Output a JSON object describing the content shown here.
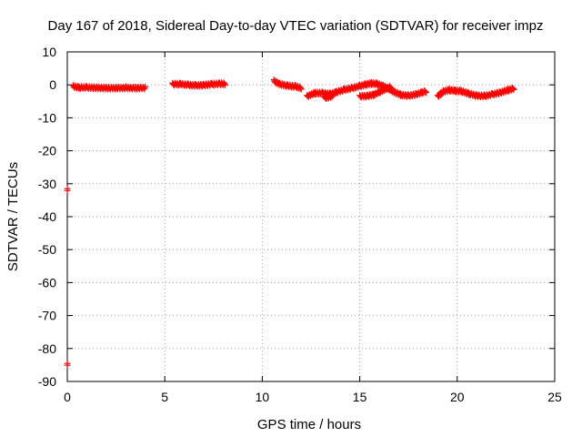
{
  "chart_data": {
    "type": "scatter",
    "title": "Day 167 of 2018, Sidereal Day-to-day VTEC variation (SDTVAR) for receiver impz",
    "xlabel": "GPS time / hours",
    "ylabel": "SDTVAR / TECUs",
    "xlim": [
      0,
      25
    ],
    "ylim": [
      -90,
      10
    ],
    "xticks": [
      0,
      5,
      10,
      15,
      20,
      25
    ],
    "yticks": [
      10,
      0,
      -10,
      -20,
      -30,
      -40,
      -50,
      -60,
      -70,
      -80,
      -90
    ],
    "grid": true,
    "series": [
      {
        "name": "SDTVAR",
        "color": "#ff0000",
        "marker": "plus",
        "segments": [
          [
            [
              0.3,
              -0.5
            ],
            [
              0.6,
              -0.8
            ],
            [
              1.0,
              -0.8
            ],
            [
              1.5,
              -0.9
            ],
            [
              2.0,
              -1.0
            ],
            [
              2.5,
              -1.0
            ],
            [
              3.0,
              -0.9
            ],
            [
              3.5,
              -1.0
            ],
            [
              4.0,
              -0.9
            ]
          ],
          [
            [
              5.4,
              0.2
            ],
            [
              5.8,
              0.2
            ],
            [
              6.2,
              0.0
            ],
            [
              6.6,
              -0.2
            ],
            [
              7.0,
              -0.1
            ],
            [
              7.4,
              0.2
            ],
            [
              7.8,
              0.3
            ],
            [
              8.1,
              0.3
            ]
          ],
          [
            [
              10.6,
              1.2
            ],
            [
              10.9,
              0.2
            ],
            [
              11.3,
              -0.3
            ],
            [
              11.7,
              -0.5
            ],
            [
              12.0,
              -1.0
            ]
          ],
          [
            [
              12.3,
              -3.5
            ],
            [
              12.7,
              -2.5
            ],
            [
              13.1,
              -2.5
            ],
            [
              13.5,
              -2.8
            ],
            [
              13.8,
              -2.2
            ],
            [
              14.2,
              -1.5
            ],
            [
              14.6,
              -1.0
            ],
            [
              15.0,
              -0.4
            ],
            [
              15.3,
              0.1
            ],
            [
              15.6,
              0.4
            ],
            [
              15.9,
              0.3
            ],
            [
              16.2,
              -0.4
            ],
            [
              16.5,
              -1.3
            ],
            [
              16.8,
              -2.3
            ],
            [
              17.1,
              -3.0
            ],
            [
              17.5,
              -3.3
            ],
            [
              17.9,
              -2.9
            ],
            [
              18.2,
              -2.3
            ],
            [
              18.4,
              -2.0
            ]
          ],
          [
            [
              13.2,
              -4.0
            ],
            [
              13.6,
              -3.5
            ]
          ],
          [
            [
              15.0,
              -3.5
            ],
            [
              15.4,
              -3.4
            ],
            [
              15.7,
              -3.0
            ],
            [
              16.0,
              -2.2
            ],
            [
              16.3,
              -1.3
            ],
            [
              16.6,
              -0.6
            ]
          ],
          [
            [
              19.0,
              -3.5
            ],
            [
              19.3,
              -2.0
            ],
            [
              19.6,
              -1.6
            ],
            [
              19.9,
              -1.8
            ],
            [
              20.2,
              -1.9
            ],
            [
              20.6,
              -2.7
            ],
            [
              21.0,
              -3.3
            ],
            [
              21.4,
              -3.4
            ],
            [
              21.8,
              -2.9
            ],
            [
              22.2,
              -2.4
            ],
            [
              22.6,
              -1.6
            ],
            [
              22.9,
              -1.1
            ]
          ]
        ],
        "isolated": [
          [
            0.0,
            -31.8
          ],
          [
            0.0,
            -84.8
          ]
        ]
      }
    ]
  }
}
